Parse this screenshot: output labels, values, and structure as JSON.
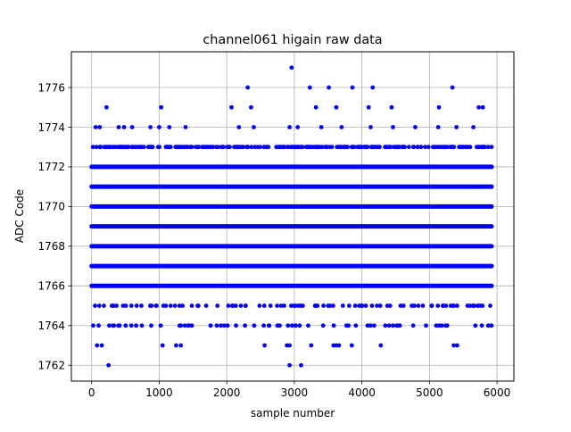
{
  "chart_data": {
    "type": "scatter",
    "title": "channel061 higain raw data",
    "xlabel": "sample number",
    "ylabel": "ADC Code",
    "xlim": [
      -300,
      6250
    ],
    "ylim": [
      1761.2,
      1777.8
    ],
    "xticks": [
      0,
      1000,
      2000,
      3000,
      4000,
      5000,
      6000
    ],
    "yticks": [
      1762,
      1764,
      1766,
      1768,
      1770,
      1772,
      1774,
      1776
    ],
    "grid": true,
    "marker_color": "#0000ff",
    "n_samples": 5920,
    "level_density": [
      {
        "y": 1762,
        "rate": 0.0006
      },
      {
        "y": 1763,
        "rate": 0.004
      },
      {
        "y": 1764,
        "rate": 0.018
      },
      {
        "y": 1765,
        "rate": 0.06
      },
      {
        "y": 1766,
        "rate": 1.0
      },
      {
        "y": 1767,
        "rate": 1.0
      },
      {
        "y": 1768,
        "rate": 1.0
      },
      {
        "y": 1769,
        "rate": 1.0
      },
      {
        "y": 1770,
        "rate": 1.0
      },
      {
        "y": 1771,
        "rate": 1.0
      },
      {
        "y": 1772,
        "rate": 1.0
      },
      {
        "y": 1773,
        "rate": 0.22
      },
      {
        "y": 1774,
        "rate": 0.025
      },
      {
        "y": 1775,
        "rate": 0.004
      },
      {
        "y": 1776,
        "rate": 0.0012
      }
    ],
    "points": [
      [
        250,
        1762
      ],
      [
        2930,
        1762
      ],
      [
        3100,
        1762
      ],
      [
        80,
        1763
      ],
      [
        150,
        1763
      ],
      [
        1050,
        1763
      ],
      [
        1250,
        1763
      ],
      [
        1320,
        1763
      ],
      [
        2560,
        1763
      ],
      [
        2890,
        1763
      ],
      [
        2930,
        1763
      ],
      [
        3250,
        1763
      ],
      [
        3580,
        1763
      ],
      [
        3620,
        1763
      ],
      [
        3660,
        1763
      ],
      [
        3850,
        1763
      ],
      [
        4280,
        1763
      ],
      [
        5360,
        1763
      ],
      [
        5410,
        1763
      ],
      [
        1760,
        1764
      ],
      [
        2270,
        1764
      ],
      [
        2630,
        1764
      ],
      [
        3020,
        1764
      ],
      [
        4950,
        1764
      ],
      [
        5680,
        1764
      ],
      [
        50,
        1765
      ],
      [
        1100,
        1765
      ],
      [
        1580,
        1765
      ],
      [
        2080,
        1765
      ],
      [
        3320,
        1765
      ],
      [
        3960,
        1765
      ],
      [
        5030,
        1765
      ],
      [
        5660,
        1765
      ],
      [
        5900,
        1765
      ],
      [
        60,
        1774
      ],
      [
        120,
        1774
      ],
      [
        400,
        1774
      ],
      [
        480,
        1774
      ],
      [
        600,
        1774
      ],
      [
        870,
        1774
      ],
      [
        1000,
        1774
      ],
      [
        1150,
        1774
      ],
      [
        1390,
        1774
      ],
      [
        2180,
        1774
      ],
      [
        2400,
        1774
      ],
      [
        2930,
        1774
      ],
      [
        3050,
        1774
      ],
      [
        3400,
        1774
      ],
      [
        3700,
        1774
      ],
      [
        4130,
        1774
      ],
      [
        4460,
        1774
      ],
      [
        4790,
        1774
      ],
      [
        5130,
        1774
      ],
      [
        5400,
        1774
      ],
      [
        5650,
        1774
      ],
      [
        220,
        1775
      ],
      [
        1030,
        1775
      ],
      [
        2070,
        1775
      ],
      [
        2360,
        1775
      ],
      [
        3320,
        1775
      ],
      [
        3620,
        1775
      ],
      [
        4100,
        1775
      ],
      [
        4440,
        1775
      ],
      [
        5140,
        1775
      ],
      [
        5730,
        1775
      ],
      [
        5790,
        1775
      ],
      [
        2310,
        1776
      ],
      [
        3230,
        1776
      ],
      [
        3510,
        1776
      ],
      [
        3860,
        1776
      ],
      [
        4160,
        1776
      ],
      [
        5340,
        1776
      ],
      [
        2960,
        1777
      ]
    ]
  }
}
